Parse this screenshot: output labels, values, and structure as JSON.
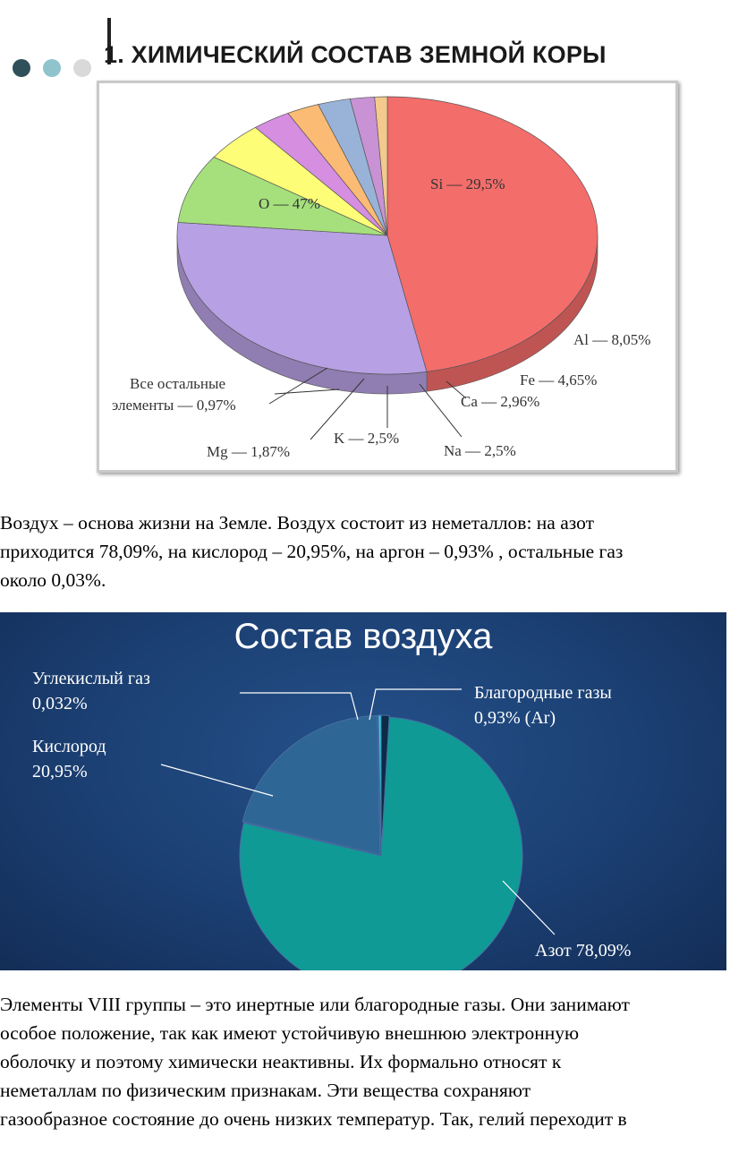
{
  "slide": {
    "title": "1. ХИМИЧЕСКИЙ СОСТАВ  ЗЕМНОЙ КОРЫ",
    "dots_colors": [
      "#2f4f5b",
      "#8fc4cc",
      "#d9d9d9"
    ]
  },
  "chart_data": [
    {
      "type": "pie",
      "title": "",
      "series": [
        {
          "values": [
            47,
            29.5,
            8.05,
            4.65,
            2.96,
            2.5,
            2.5,
            1.87,
            0.97
          ]
        }
      ],
      "labels": [
        "O — 47%",
        "Si — 29,5%",
        "Al — 8,05%",
        "Fe — 4,65%",
        "Ca — 2,96%",
        "Na — 2,5%",
        "K  — 2,5%",
        "Mg — 1,87%",
        "Все остальные элементы — 0,97%"
      ],
      "label_lines": {
        "others": [
          "Все остальные",
          "элементы — 0,97%"
        ]
      },
      "colors": [
        "#f36d6b",
        "#b8a0e4",
        "#a6e07c",
        "#fdfd78",
        "#d58ee0",
        "#fbbb75",
        "#99b3d8",
        "#c892d4",
        "#f4c98e"
      ],
      "style": "3d",
      "start_angle_deg": -90
    },
    {
      "type": "pie",
      "title": "Состав воздуха",
      "series": [
        {
          "values": [
            78.09,
            20.95,
            0.032,
            0.93
          ]
        }
      ],
      "labels": [
        "Азот   78,09%",
        "Кислород 20,95%",
        "Углекислый газ 0,032%",
        "Благородные газы 0,93% (Ar)"
      ],
      "label_lines": {
        "nitrogen": [
          "Азот   78,09%"
        ],
        "oxygen": [
          "Кислород",
          "20,95%"
        ],
        "co2": [
          "Углекислый газ",
          "0,032%"
        ],
        "noble": [
          "Благородные газы",
          "0,93% (Ar)"
        ]
      },
      "colors": [
        "#0f9a96",
        "#2e6696",
        "#25d9ea",
        "#0d2a47"
      ],
      "start_angle_deg": -90
    }
  ],
  "text": {
    "para1": [
      "Воздух – основа жизни на Земле. Воздух состоит из неметаллов: на азот",
      "приходится 78,09%, на кислород – 20,95%, на аргон – 0,93% , остальные газ",
      "около 0,03%."
    ],
    "para2": [
      "Элементы VIII группы – это инертные или благородные газы. Они занимают",
      "особое положение, так как имеют устойчивую внешнюю электронную",
      "оболочку и поэтому химически неактивны. Их формально относят к",
      "неметаллам по физическим признакам. Эти вещества сохраняют",
      "газообразное состояние до очень низких температур. Так, гелий переходит в"
    ]
  }
}
